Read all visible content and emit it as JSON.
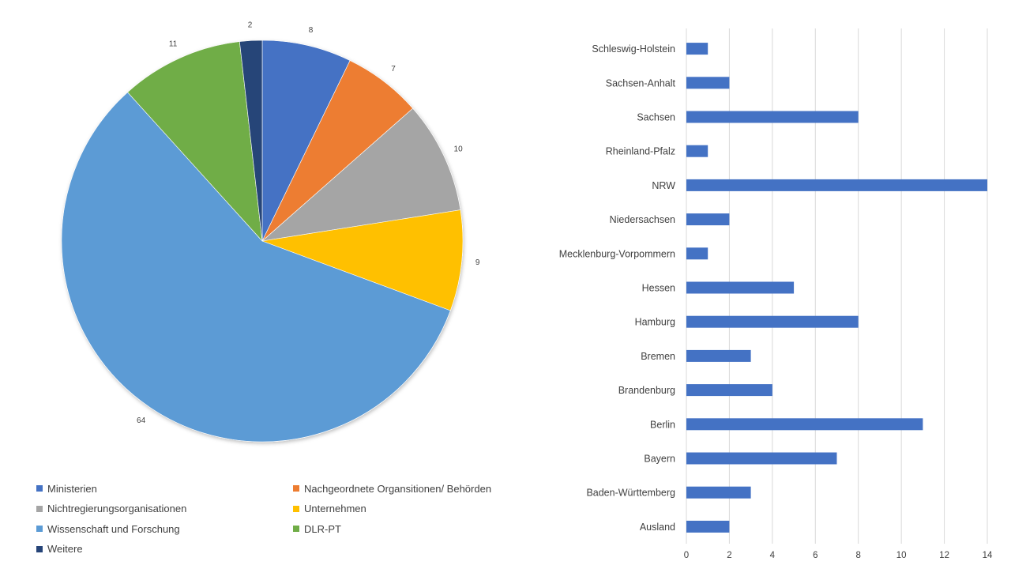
{
  "chart_data": [
    {
      "type": "pie",
      "title": "",
      "categories": [
        "Ministerien",
        "Nachgeordnete Organsitionen/ Behörden",
        "Nichtregierungsorganisationen",
        "Unternehmen",
        "Wissenschaft und Forschung",
        "DLR-PT",
        "Weitere"
      ],
      "values": [
        8,
        7,
        10,
        9,
        64,
        11,
        2
      ],
      "colors": [
        "#4472C4",
        "#ED7D31",
        "#A5A5A5",
        "#FFC000",
        "#5B9BD5",
        "#70AD47",
        "#264478"
      ],
      "data_labels": [
        "8",
        "7",
        "10",
        "9",
        "64",
        "11",
        "2"
      ],
      "legend": "bottom"
    },
    {
      "type": "bar",
      "orientation": "horizontal",
      "title": "",
      "xlabel": "",
      "ylabel": "",
      "categories": [
        "Schleswig-Holstein",
        "Sachsen-Anhalt",
        "Sachsen",
        "Rheinland-Pfalz",
        "NRW",
        "Niedersachsen",
        "Mecklenburg-Vorpommern",
        "Hessen",
        "Hamburg",
        "Bremen",
        "Brandenburg",
        "Berlin",
        "Bayern",
        "Baden-Württemberg",
        "Ausland"
      ],
      "values": [
        1,
        2,
        8,
        1,
        14,
        2,
        1,
        5,
        8,
        3,
        4,
        11,
        7,
        3,
        2
      ],
      "xlim": [
        0,
        14
      ],
      "ticks": [
        "0",
        "2",
        "4",
        "6",
        "8",
        "10",
        "12",
        "14"
      ],
      "grid": true,
      "color": "#4472C4"
    }
  ]
}
